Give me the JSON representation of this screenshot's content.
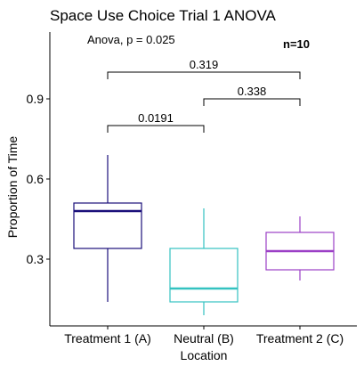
{
  "chart_data": {
    "type": "boxplot",
    "title": "Space Use Choice Trial 1 ANOVA",
    "xlabel": "Location",
    "ylabel": "Proportion of Time",
    "ylim": [
      0.05,
      1.15
    ],
    "yticks": [
      0.3,
      0.6,
      0.9
    ],
    "ytick_labels": [
      "0.3",
      "0.6",
      "0.9"
    ],
    "categories": [
      "Treatment 1 (A)",
      "Neutral (B)",
      "Treatment 2 (C)"
    ],
    "boxes": [
      {
        "category": "Treatment 1 (A)",
        "min": 0.14,
        "q1": 0.34,
        "median": 0.48,
        "q3": 0.51,
        "max": 0.69,
        "color": "#1a0f7a"
      },
      {
        "category": "Neutral (B)",
        "min": 0.09,
        "q1": 0.14,
        "median": 0.19,
        "q3": 0.34,
        "max": 0.49,
        "color": "#33c2c0"
      },
      {
        "category": "Treatment 2 (C)",
        "min": 0.22,
        "q1": 0.26,
        "median": 0.33,
        "q3": 0.4,
        "max": 0.46,
        "color": "#9b3fc6"
      }
    ],
    "comparisons": [
      {
        "from": "Treatment 1 (A)",
        "to": "Neutral (B)",
        "label": "0.0191",
        "y": 0.8
      },
      {
        "from": "Neutral (B)",
        "to": "Treatment 2 (C)",
        "label": "0.338",
        "y": 0.9
      },
      {
        "from": "Treatment 1 (A)",
        "to": "Treatment 2 (C)",
        "label": "0.319",
        "y": 1.0
      }
    ],
    "annotations": {
      "anova": "Anova, p = 0.025",
      "n": "n=10"
    },
    "grid": false,
    "legend": "none"
  }
}
